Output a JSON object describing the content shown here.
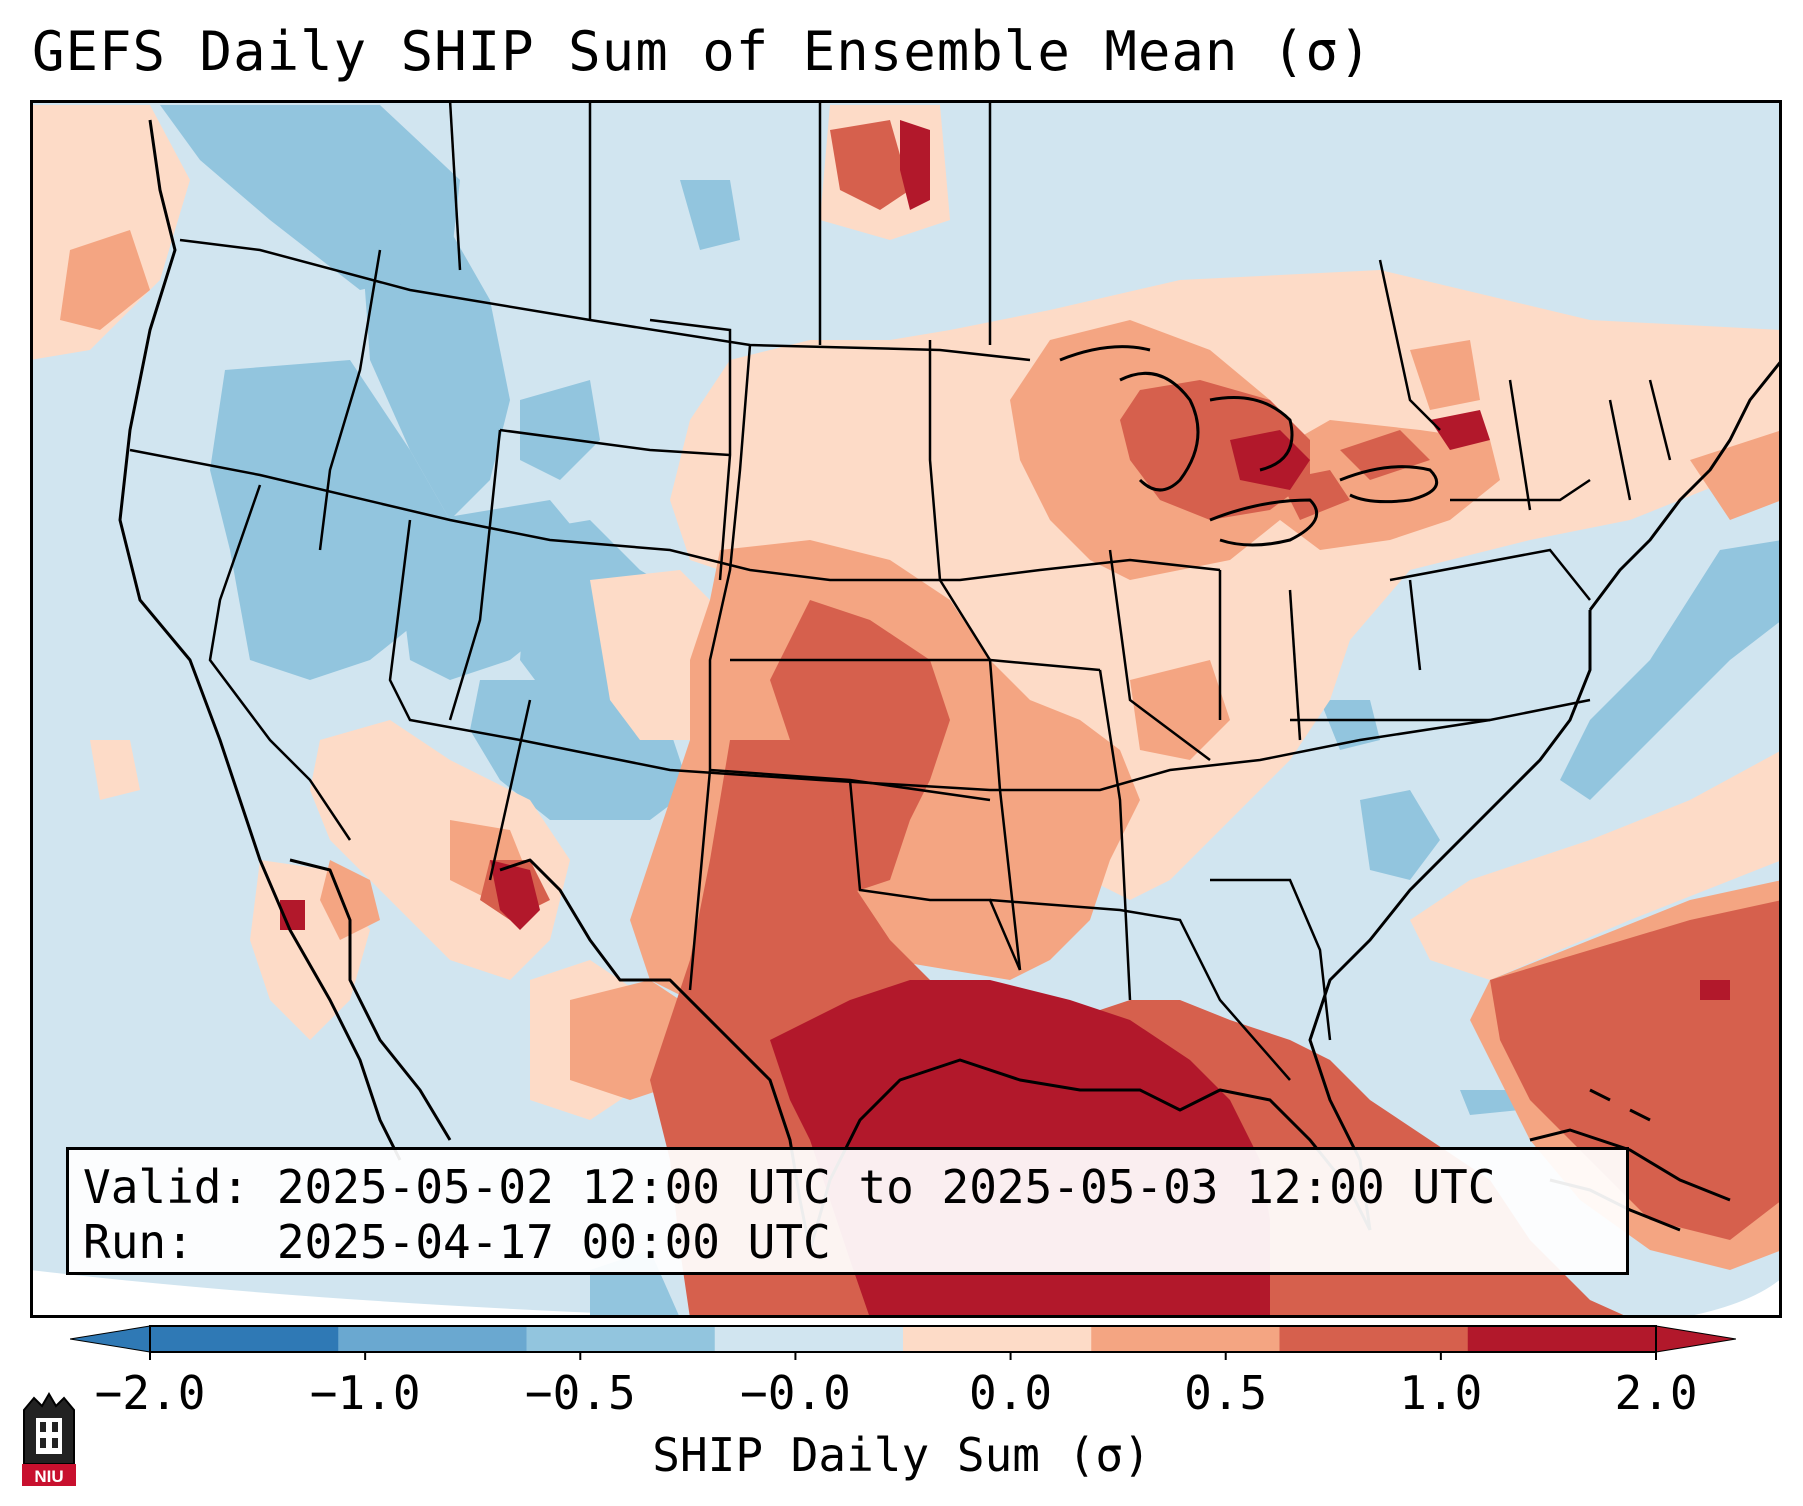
{
  "title": "GEFS Daily SHIP Sum of Ensemble Mean (σ)",
  "info": {
    "valid": "Valid: 2025-05-02 12:00 UTC to 2025-05-03 12:00 UTC",
    "run": "Run:   2025-04-17 00:00 UTC"
  },
  "colorbar": {
    "label": "SHIP Daily Sum (σ)",
    "ticks": [
      "−2.0",
      "−1.0",
      "−0.5",
      "−0.0",
      "0.0",
      "0.5",
      "1.0",
      "2.0"
    ],
    "colors": [
      "#2f79b5",
      "#6aa8d0",
      "#92c5de",
      "#d1e5f0",
      "#fddbc7",
      "#f4a582",
      "#d6604d",
      "#b2182b"
    ]
  },
  "logo": {
    "text": "NIU",
    "color": "#c8102e"
  }
}
